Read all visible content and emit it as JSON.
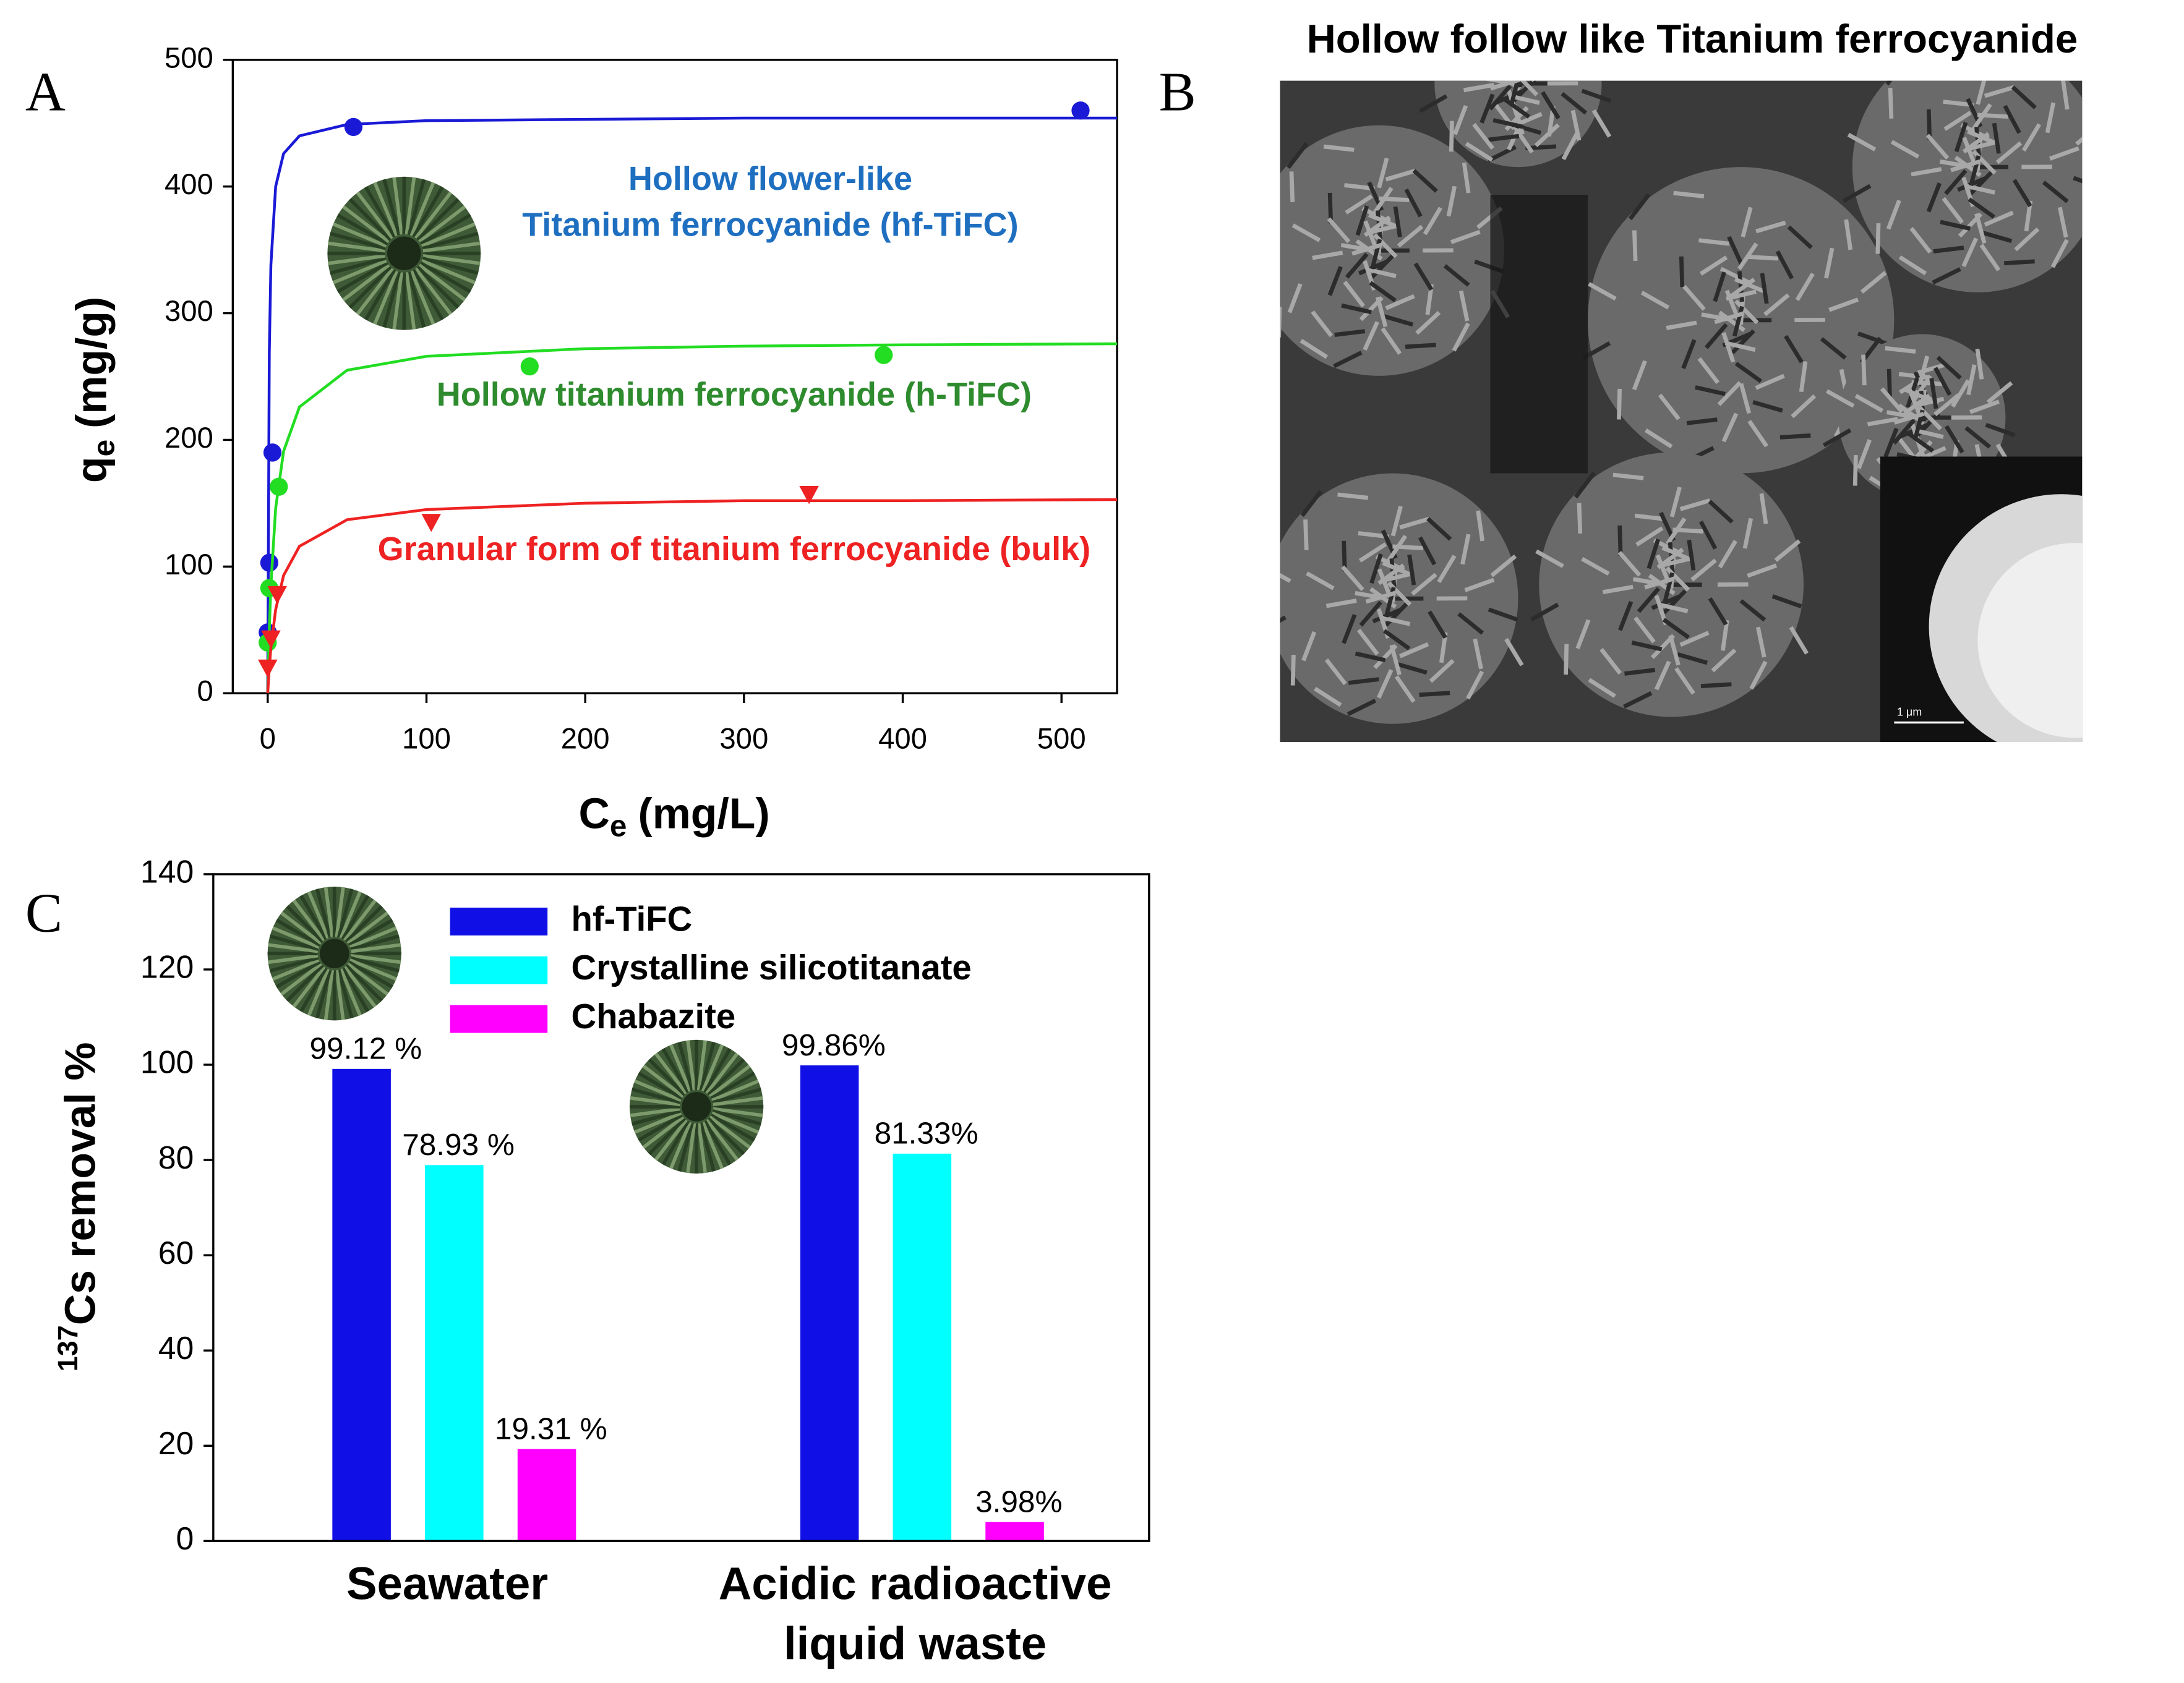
{
  "chart_data": [
    {
      "type": "scatter",
      "panel": "A",
      "xlabel": {
        "symbol": "C",
        "subscript": "e",
        "unit": "(mg/L)"
      },
      "ylabel": {
        "symbol": "q",
        "subscript": "e",
        "unit": "(mg/g)"
      },
      "xlim": [
        -22,
        535
      ],
      "ylim": [
        0,
        500
      ],
      "xticks": [
        0,
        100,
        200,
        300,
        400,
        500
      ],
      "yticks": [
        0,
        100,
        200,
        300,
        400,
        500
      ],
      "series": [
        {
          "label": [
            "Hollow flower-like",
            "Titanium ferrocyanide (hf-TiFC)"
          ],
          "color": "#1a1ad6",
          "label_color": "#1f6fc0",
          "marker": "circle",
          "x": [
            0,
            1,
            3,
            54,
            512
          ],
          "values": [
            48,
            103,
            190,
            447,
            460
          ],
          "fit_x": [
            0,
            1,
            2,
            5,
            10,
            20,
            50,
            100,
            200,
            300,
            400,
            550
          ],
          "fit_values": [
            0,
            269,
            338,
            400,
            426,
            440,
            449,
            452,
            453,
            454,
            454,
            454
          ]
        },
        {
          "label": [
            "Hollow titanium ferrocyanide (h-TiFC)"
          ],
          "color": "#22dd22",
          "label_color": "#2e8b2e",
          "marker": "circle",
          "x": [
            0,
            1,
            7,
            165,
            388
          ],
          "values": [
            40,
            83,
            163,
            258,
            267
          ],
          "fit_x": [
            0,
            1,
            2,
            5,
            10,
            20,
            50,
            100,
            200,
            300,
            400,
            550
          ],
          "fit_values": [
            0,
            50,
            85,
            146,
            191,
            226,
            255,
            266,
            272,
            274,
            275,
            276
          ]
        },
        {
          "label": [
            "Granular form of titanium ferrocyanide (bulk)"
          ],
          "color": "#ee2222",
          "label_color": "#ee2222",
          "marker": "triangle",
          "x": [
            0,
            2,
            6,
            103,
            341
          ],
          "values": [
            20,
            43,
            78,
            135,
            157
          ],
          "fit_x": [
            0,
            1,
            2,
            5,
            10,
            20,
            50,
            100,
            200,
            300,
            400,
            550
          ],
          "fit_values": [
            0,
            20,
            36,
            66,
            93,
            116,
            137,
            145,
            150,
            152,
            152,
            153
          ]
        }
      ]
    },
    {
      "type": "image",
      "panel": "B",
      "title": "Hollow follow like Titanium ferrocyanide",
      "scale_bar": "1 μm"
    },
    {
      "type": "bar",
      "panel": "C",
      "ylabel": {
        "superscript": "137",
        "text": "Cs removal %"
      },
      "categories": [
        "Seawater",
        "Acidic radioactive liquid waste"
      ],
      "ylim": [
        0,
        140
      ],
      "yticks": [
        0,
        20,
        40,
        60,
        80,
        100,
        120,
        140
      ],
      "series": [
        {
          "name": "hf-TiFC",
          "color": "#1010e6",
          "values": [
            99.12,
            99.86
          ],
          "value_labels": [
            "99.12 %",
            "99.86%"
          ]
        },
        {
          "name": "Crystalline silicotitanate",
          "color": "#00ffff",
          "values": [
            78.93,
            81.33
          ],
          "value_labels": [
            "78.93 %",
            "81.33%"
          ]
        },
        {
          "name": "Chabazite",
          "color": "#ff00ff",
          "values": [
            19.31,
            3.98
          ],
          "value_labels": [
            "19.31 %",
            "3.98%"
          ]
        }
      ]
    }
  ]
}
